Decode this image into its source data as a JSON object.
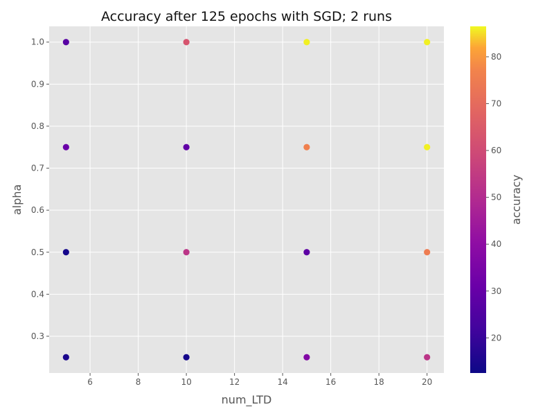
{
  "chart_data": {
    "type": "scatter",
    "title": "Accuracy after 125 epochs with SGD; 2 runs",
    "xlabel": "num_LTD",
    "ylabel": "alpha",
    "colorbar_label": "accuracy",
    "colormap": "plasma",
    "xlim": [
      4.3,
      20.7
    ],
    "ylim": [
      0.2125,
      1.0375
    ],
    "clim": [
      12.5,
      86.5
    ],
    "xticks": [
      6,
      8,
      10,
      12,
      14,
      16,
      18,
      20
    ],
    "yticks": [
      0.3,
      0.4,
      0.5,
      0.6,
      0.7,
      0.8,
      0.9,
      1.0
    ],
    "xtick_labels": [
      "6",
      "8",
      "10",
      "12",
      "14",
      "16",
      "18",
      "20"
    ],
    "ytick_labels": [
      "0.3",
      "0.4",
      "0.5",
      "0.6",
      "0.7",
      "0.8",
      "0.9",
      "1.0"
    ],
    "colorbar_ticks": [
      20,
      30,
      40,
      50,
      60,
      70,
      80
    ],
    "colorbar_tick_labels": [
      "20",
      "30",
      "40",
      "50",
      "60",
      "70",
      "80"
    ],
    "grid": true,
    "background": "#e5e5e5",
    "points": [
      {
        "x": 5,
        "y": 1.0,
        "accuracy": 27
      },
      {
        "x": 5,
        "y": 0.75,
        "accuracy": 31
      },
      {
        "x": 5,
        "y": 0.5,
        "accuracy": 14
      },
      {
        "x": 5,
        "y": 0.25,
        "accuracy": 15
      },
      {
        "x": 10,
        "y": 1.0,
        "accuracy": 63
      },
      {
        "x": 10,
        "y": 0.75,
        "accuracy": 29
      },
      {
        "x": 10,
        "y": 0.5,
        "accuracy": 53
      },
      {
        "x": 10,
        "y": 0.25,
        "accuracy": 14
      },
      {
        "x": 15,
        "y": 1.0,
        "accuracy": 86
      },
      {
        "x": 15,
        "y": 0.75,
        "accuracy": 76
      },
      {
        "x": 15,
        "y": 0.5,
        "accuracy": 28
      },
      {
        "x": 15,
        "y": 0.25,
        "accuracy": 37
      },
      {
        "x": 20,
        "y": 1.0,
        "accuracy": 86
      },
      {
        "x": 20,
        "y": 0.75,
        "accuracy": 86
      },
      {
        "x": 20,
        "y": 0.5,
        "accuracy": 75
      },
      {
        "x": 20,
        "y": 0.25,
        "accuracy": 53
      }
    ]
  }
}
